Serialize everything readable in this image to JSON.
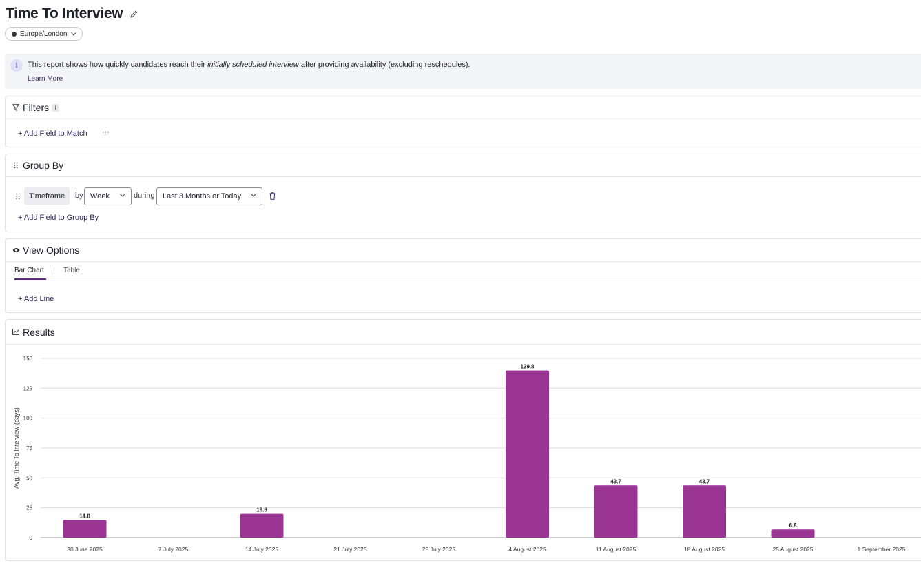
{
  "header": {
    "title": "Time To Interview",
    "timezone": "Europe/London"
  },
  "info": {
    "icon": "i",
    "text_before": "This report shows how quickly candidates reach their ",
    "text_em": "initially scheduled interview",
    "text_after": " after providing availability (excluding reschedules).",
    "learn_more": "Learn More"
  },
  "filters": {
    "title": "Filters",
    "info_badge": "i",
    "add_field": "+ Add Field to Match",
    "more": "···"
  },
  "group_by": {
    "title": "Group By",
    "field": "Timeframe",
    "by_label": "by",
    "interval": "Week",
    "during_label": "during",
    "range": "Last 3 Months or Today",
    "add_field": "+ Add Field to Group By"
  },
  "view_options": {
    "title": "View Options",
    "tabs": [
      {
        "label": "Bar Chart",
        "active": true
      },
      {
        "label": "Table",
        "active": false
      }
    ],
    "add_line": "+ Add Line"
  },
  "results": {
    "title": "Results"
  },
  "colors": {
    "bar": "#9b3594",
    "accent": "#5b2b7a",
    "link": "#2e2a63"
  },
  "chart_data": {
    "type": "bar",
    "title": "",
    "xlabel": "",
    "ylabel": "Avg. Time To Interview (days)",
    "ylim": [
      0,
      150
    ],
    "yticks": [
      0,
      25,
      50,
      75,
      100,
      125,
      150
    ],
    "grid": true,
    "categories": [
      "30 June 2025",
      "7 July 2025",
      "14 July 2025",
      "21 July 2025",
      "28 July 2025",
      "4 August 2025",
      "11 August 2025",
      "18 August 2025",
      "25 August 2025",
      "1 September 2025"
    ],
    "values": [
      14.8,
      null,
      19.8,
      null,
      null,
      139.8,
      43.7,
      43.7,
      6.8,
      null
    ],
    "data_labels": [
      "14.8",
      "",
      "19.8",
      "",
      "",
      "139.8",
      "43.7",
      "43.7",
      "6.8",
      ""
    ]
  }
}
